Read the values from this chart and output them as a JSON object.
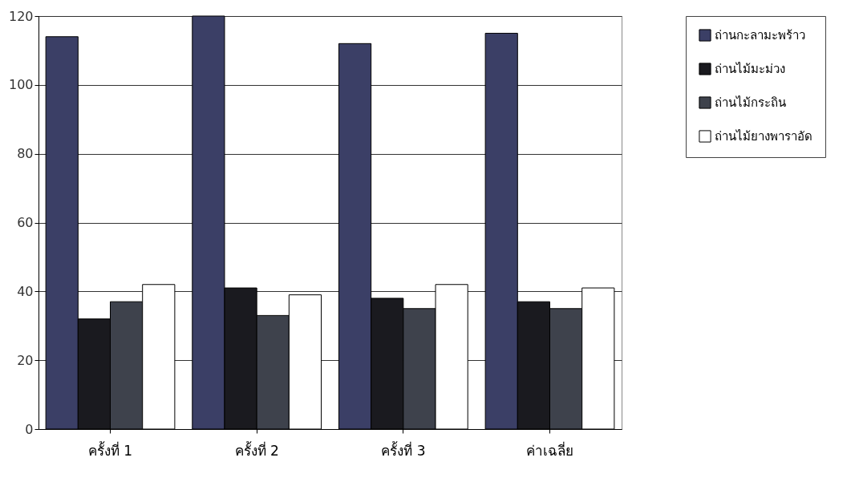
{
  "chart_data": {
    "type": "bar",
    "categories": [
      "ครั้งที่ 1",
      "ครั้งที่ 2",
      "ครั้งที่ 3",
      "ค่าเฉลี่ย"
    ],
    "series": [
      {
        "name": "ถ่านกะลามะพร้าว",
        "color": "#3b3f66",
        "values": [
          114,
          120,
          112,
          115
        ]
      },
      {
        "name": "ถ่านไม้มะม่วง",
        "color": "#1a1a1f",
        "values": [
          32,
          41,
          38,
          37
        ]
      },
      {
        "name": "ถ่านไม้กระถิน",
        "color": "#3e424c",
        "values": [
          37,
          33,
          35,
          35
        ]
      },
      {
        "name": "ถ่านไม้ยางพาราอัด",
        "color": "#ffffff",
        "values": [
          42,
          39,
          42,
          41
        ]
      }
    ],
    "ylim": [
      0,
      120
    ],
    "yticks": [
      0,
      20,
      40,
      60,
      80,
      100,
      120
    ],
    "grid": "y",
    "legend": "right"
  }
}
